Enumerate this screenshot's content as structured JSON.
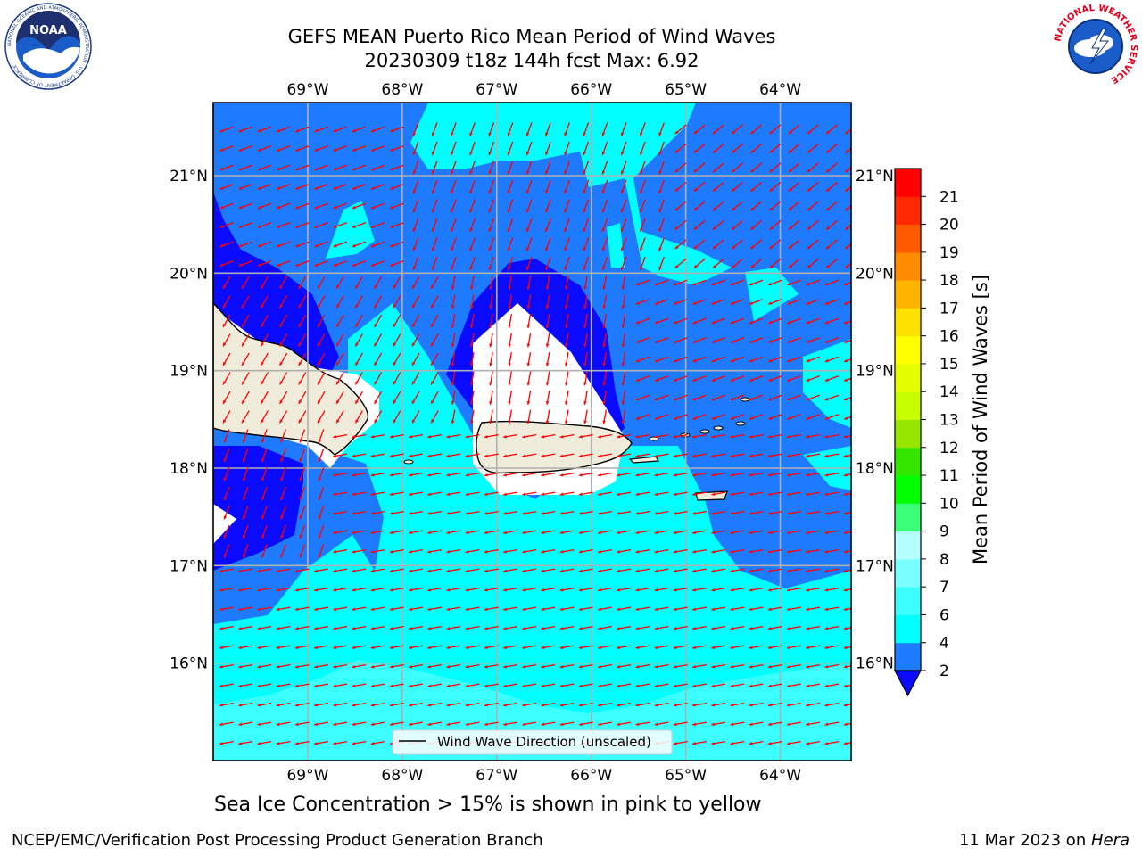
{
  "title_line1": "GEFS MEAN Puerto Rico Mean Period of Wind Waves",
  "title_line2": "20230309 t18z 144h fcst   Max: 6.92",
  "map": {
    "lon_ticks": [
      "69°W",
      "68°W",
      "67°W",
      "66°W",
      "65°W",
      "64°W"
    ],
    "lat_ticks": [
      "21°N",
      "20°N",
      "19°N",
      "18°N",
      "17°N",
      "16°N"
    ],
    "lon_values": [
      -69,
      -68,
      -67,
      -66,
      -65,
      -64
    ],
    "lat_values": [
      21,
      20,
      19,
      18,
      17,
      16
    ],
    "lon_range": [
      -70.0,
      -63.25
    ],
    "lat_range": [
      15.0,
      21.75
    ],
    "legend_label": "Wind Wave Direction (unscaled)",
    "arrow_color": "#ff0000",
    "land_color": "#efecdc",
    "grid": true
  },
  "colorbar": {
    "label": "Mean Period of Wind Waves [s]",
    "ticks": [
      "2",
      "4",
      "6",
      "7",
      "8",
      "9",
      "10",
      "11",
      "12",
      "13",
      "14",
      "15",
      "16",
      "17",
      "18",
      "19",
      "20",
      "21"
    ],
    "colors": [
      "#1e7bff",
      "#00ffff",
      "#3cffff",
      "#7affff",
      "#b4ffff",
      "#3cff78",
      "#00ff00",
      "#32e600",
      "#96e600",
      "#c8ff00",
      "#e6ff00",
      "#ffff00",
      "#ffe100",
      "#ffb400",
      "#ff8c00",
      "#ff5a00",
      "#ff2800",
      "#ff0000"
    ],
    "under_color": "#0a0aff",
    "extend": "min"
  },
  "ice_note": "Sea Ice Concentration > 15% is shown in pink to yellow",
  "footer_left": "NCEP/EMC/Verification Post Processing Product Generation Branch",
  "footer_date": "11 Mar 2023 on ",
  "footer_host": "Hera",
  "logos": {
    "noaa_text": "NOAA",
    "noaa_ring": "NATIONAL OCEANIC AND ATMOSPHERIC ADMINISTRATION · U.S. DEPARTMENT OF COMMERCE",
    "nws_ring": "NATIONAL WEATHER SERVICE"
  }
}
